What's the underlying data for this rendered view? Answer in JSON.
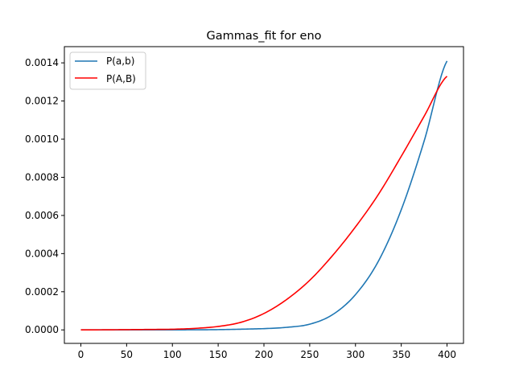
{
  "chart_data": {
    "type": "line",
    "title": "Gammas_fit for eno",
    "xlabel": "",
    "ylabel": "",
    "xlim": [
      -18,
      418
    ],
    "ylim": [
      -7.07e-05,
      0.001485
    ],
    "xticks": [
      0,
      50,
      100,
      150,
      200,
      250,
      300,
      350,
      400
    ],
    "xtick_labels": [
      "0",
      "50",
      "100",
      "150",
      "200",
      "250",
      "300",
      "350",
      "400"
    ],
    "yticks": [
      0,
      0.0002,
      0.0004,
      0.0006,
      0.0008,
      0.001,
      0.0012,
      0.0014
    ],
    "ytick_labels": [
      "0.0000",
      "0.0002",
      "0.0004",
      "0.0006",
      "0.0008",
      "0.0010",
      "0.0012",
      "0.0014"
    ],
    "grid": false,
    "legend_position": "top-left",
    "series": [
      {
        "name": "P(a,b)",
        "color": "#1f77b4",
        "x": [
          0,
          100,
          150,
          200,
          225,
          250,
          275,
          300,
          325,
          350,
          375,
          400
        ],
        "y": [
          0,
          2e-07,
          1.5e-06,
          6.5e-06,
          1.35e-05,
          3e-05,
          8e-05,
          0.000185,
          0.00036,
          0.00063,
          0.00099,
          0.00141
        ]
      },
      {
        "name": "P(A,B)",
        "color": "#ff0000",
        "x": [
          0,
          100,
          125,
          150,
          175,
          200,
          225,
          250,
          275,
          300,
          325,
          350,
          375,
          400
        ],
        "y": [
          0,
          3.3e-06,
          8e-06,
          1.8e-05,
          4e-05,
          8.6e-05,
          0.00016,
          0.00026,
          0.00039,
          0.00054,
          0.00071,
          0.00091,
          0.00112,
          0.00133
        ]
      }
    ]
  }
}
